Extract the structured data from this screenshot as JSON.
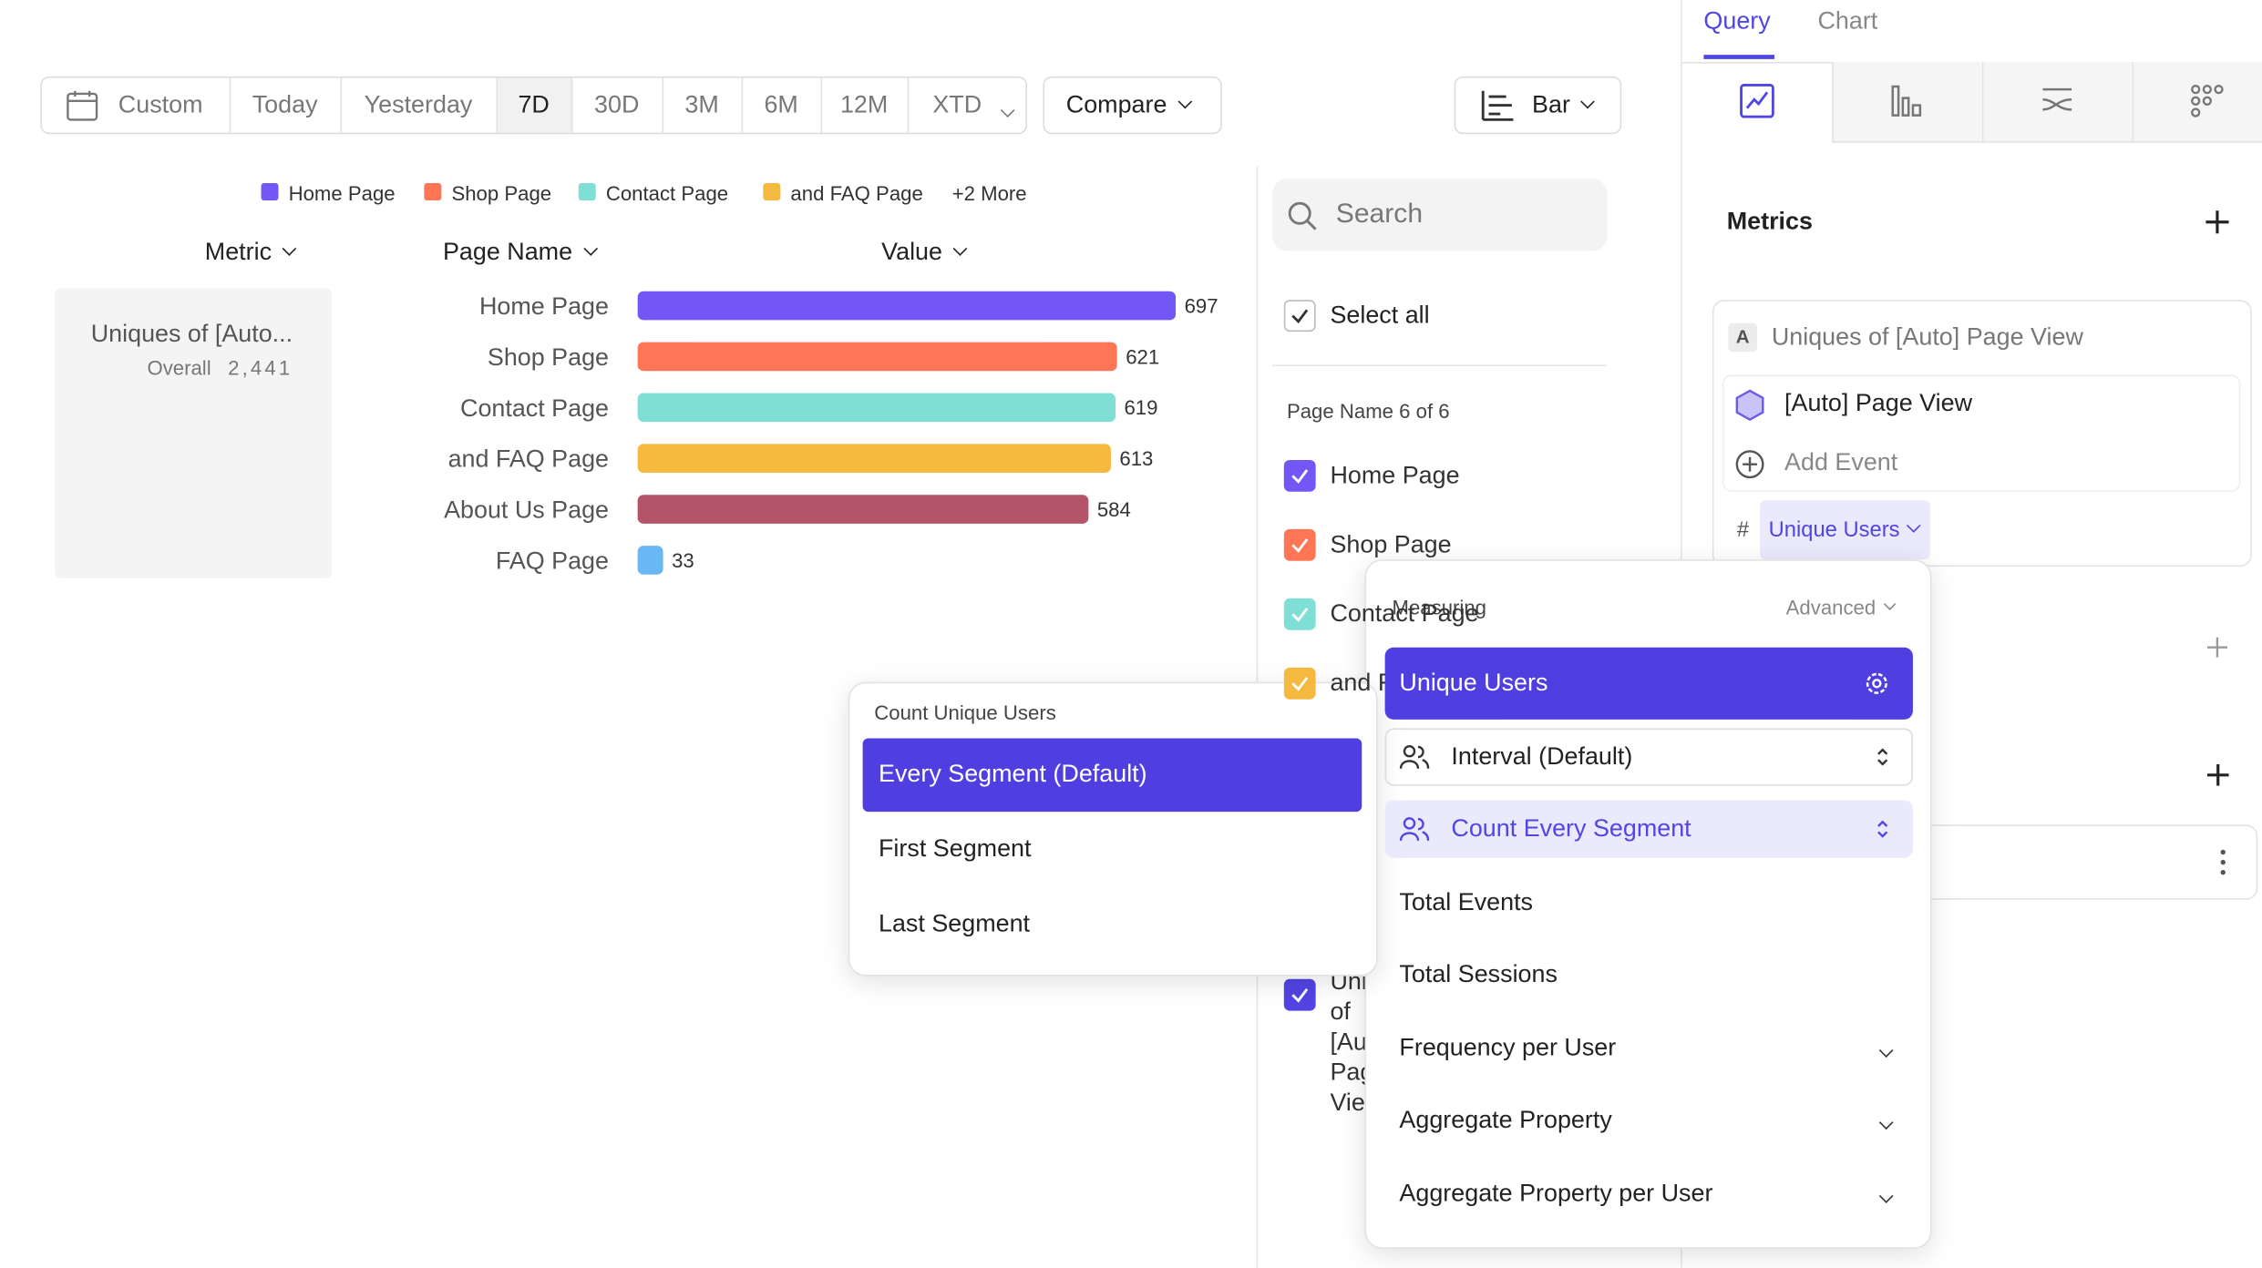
{
  "toolbar": {
    "date_options": [
      "Custom",
      "Today",
      "Yesterday",
      "7D",
      "30D",
      "3M",
      "6M",
      "12M",
      "XTD"
    ],
    "active": "7D",
    "compare": "Compare",
    "chart_type": "Bar"
  },
  "legend": {
    "items": [
      "Home Page",
      "Shop Page",
      "Contact Page",
      "and FAQ Page"
    ],
    "more": "+2 More"
  },
  "columns": [
    "Metric",
    "Page Name",
    "Value"
  ],
  "metric_card": {
    "name": "Uniques of [Auto...",
    "label": "Overall",
    "value": "2,441"
  },
  "chart_data": {
    "type": "bar",
    "orientation": "horizontal",
    "categories": [
      "Home Page",
      "Shop Page",
      "Contact Page",
      "and FAQ Page",
      "About Us Page",
      "FAQ Page"
    ],
    "values": [
      697,
      621,
      619,
      613,
      584,
      33
    ],
    "colors": [
      "#7357f6",
      "#fe7656",
      "#7fdfd5",
      "#f5b93f",
      "#b35468",
      "#6ab8f3"
    ]
  },
  "filter": {
    "search": "Search",
    "select_all": "Select all",
    "group": "Page Name 6 of 6",
    "items": [
      "Home Page",
      "Shop Page",
      "Contact Page",
      "and FAQ Page"
    ],
    "last_item": "Uniques of [Auto] Page View"
  },
  "tabs": [
    "Query",
    "Chart"
  ],
  "metrics": {
    "title": "Metrics",
    "letter": "A",
    "name": "Uniques of [Auto] Page View",
    "event": "[Auto] Page View",
    "add_event": "Add Event",
    "hash": "#",
    "measure": "Unique Users"
  },
  "measuring_menu": {
    "title": "Measuring",
    "advanced": "Advanced",
    "options": [
      "Unique Users",
      "Interval (Default)",
      "Count Every Segment",
      "Total Events",
      "Total Sessions",
      "Frequency per User",
      "Aggregate Property",
      "Aggregate Property per User"
    ]
  },
  "count_menu": {
    "title": "Count Unique Users",
    "options": [
      "Every Segment (Default)",
      "First Segment",
      "Last Segment"
    ]
  }
}
